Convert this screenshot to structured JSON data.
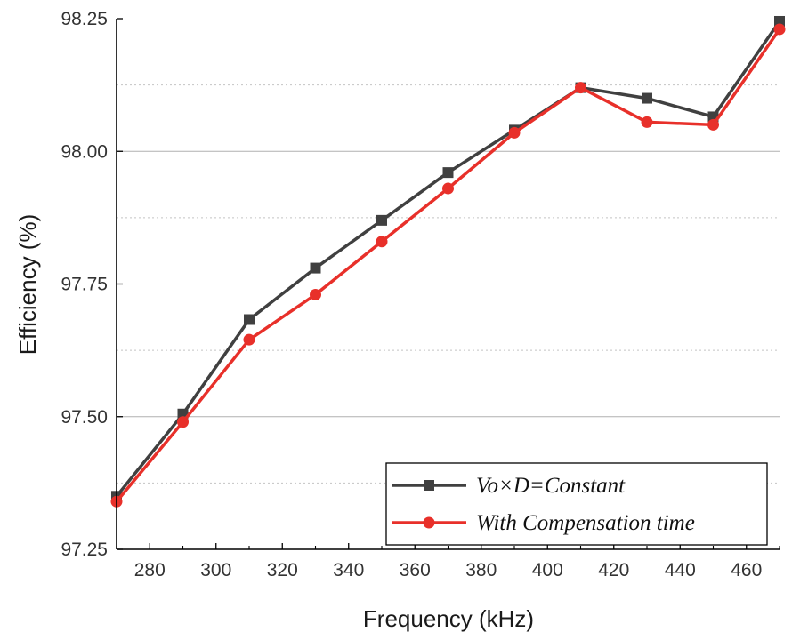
{
  "chart_data": {
    "type": "line",
    "title": "",
    "xlabel": "Frequency (kHz)",
    "ylabel": "Efficiency (%)",
    "xlim": [
      270,
      470
    ],
    "ylim": [
      97.25,
      98.25
    ],
    "x_ticks": [
      "280",
      "300",
      "320",
      "340",
      "360",
      "380",
      "400",
      "420",
      "440",
      "460"
    ],
    "y_ticks": [
      "97.25",
      "97.50",
      "97.75",
      "98.00",
      "98.25"
    ],
    "grid": {
      "major_y": true,
      "minor_y": true,
      "x": false
    },
    "legend_position": "bottom-right",
    "x": [
      270,
      290,
      310,
      330,
      350,
      370,
      390,
      410,
      430,
      450,
      470
    ],
    "series": [
      {
        "name": "Vo×D=Constant",
        "color": "#404040",
        "marker": "square",
        "values": [
          97.35,
          97.505,
          97.683,
          97.78,
          97.87,
          97.96,
          98.04,
          98.12,
          98.1,
          98.065,
          98.245
        ]
      },
      {
        "name": "With Compensation time",
        "color": "#e8302a",
        "marker": "circle",
        "values": [
          97.34,
          97.49,
          97.645,
          97.73,
          97.83,
          97.93,
          98.035,
          98.12,
          98.055,
          98.05,
          98.23
        ]
      }
    ]
  }
}
